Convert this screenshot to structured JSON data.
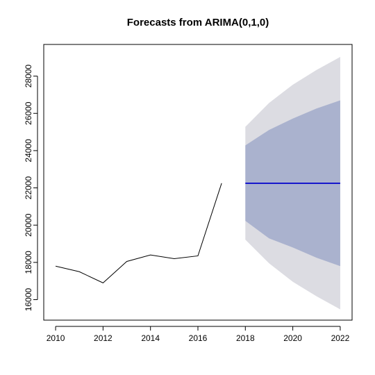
{
  "chart_data": {
    "type": "line",
    "title": "Forecasts from ARIMA(0,1,0)",
    "xlabel": "",
    "ylabel": "",
    "xlim": [
      2009.5,
      2022.5
    ],
    "ylim": [
      14900,
      29700
    ],
    "x_ticks": [
      2010,
      2012,
      2014,
      2016,
      2018,
      2020,
      2022
    ],
    "y_ticks": [
      16000,
      18000,
      20000,
      22000,
      24000,
      26000,
      28000
    ],
    "grid": false,
    "legend": "none",
    "series": [
      {
        "kind": "observed",
        "color": "#000000",
        "x": [
          2010,
          2011,
          2012,
          2013,
          2014,
          2015,
          2016,
          2017
        ],
        "values": [
          17800,
          17500,
          16900,
          18050,
          18400,
          18200,
          18350,
          22250
        ]
      },
      {
        "kind": "point-forecast",
        "color": "#0000cc",
        "x": [
          2018,
          2019,
          2020,
          2021,
          2022
        ],
        "values": [
          22250,
          22250,
          22250,
          22250,
          22250
        ]
      }
    ],
    "intervals": [
      {
        "level": "95%",
        "color": "#dcdce2",
        "x": [
          2018,
          2019,
          2020,
          2021,
          2022
        ],
        "lower": [
          19220,
          17950,
          16960,
          16180,
          15480
        ],
        "upper": [
          25280,
          26560,
          27540,
          28330,
          29030
        ]
      },
      {
        "level": "80%",
        "color": "#aab2ce",
        "x": [
          2018,
          2019,
          2020,
          2021,
          2022
        ],
        "lower": [
          20230,
          19290,
          18800,
          18250,
          17800
        ],
        "upper": [
          24280,
          25110,
          25720,
          26260,
          26700
        ]
      }
    ]
  }
}
